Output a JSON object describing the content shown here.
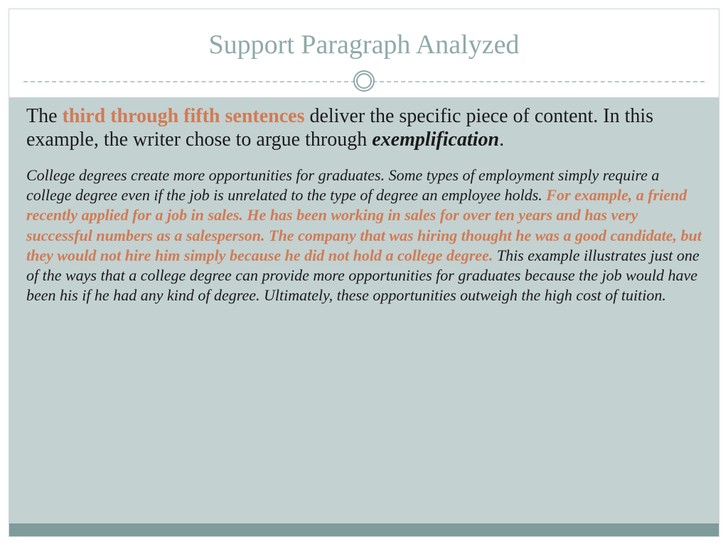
{
  "colors": {
    "accent": "#d17b54",
    "title": "#8fa9a9",
    "content_bg": "#c3d1d1",
    "bottom_bar": "#7f9b9b",
    "border": "#c9d6d6",
    "dash": "#b8c8c8",
    "text": "#1a1a1a"
  },
  "title": "Support Paragraph Analyzed",
  "intro": {
    "t1": "The ",
    "accent": "third through fifth sentences",
    "t2": " deliver the specific piece of content. In this example, the writer chose to argue through ",
    "emph": "exemplification",
    "t3": "."
  },
  "body": {
    "p1": "College degrees create more opportunities for graduates. Some types of employment simply require a college degree even if the job is unrelated to the type of degree an employee holds. ",
    "accent": "For example, a friend recently applied for a job in sales. He has been working in sales for over ten years and has very successful numbers as a salesperson. The company that was hiring thought he was a good candidate, but they would not hire him simply because he did not hold a college degree.",
    "p2": " This example illustrates just one of the ways that a college degree can provide more opportunities for graduates because the job would have been his if he had any kind of degree. Ultimately, these opportunities outweigh the high cost of tuition."
  }
}
